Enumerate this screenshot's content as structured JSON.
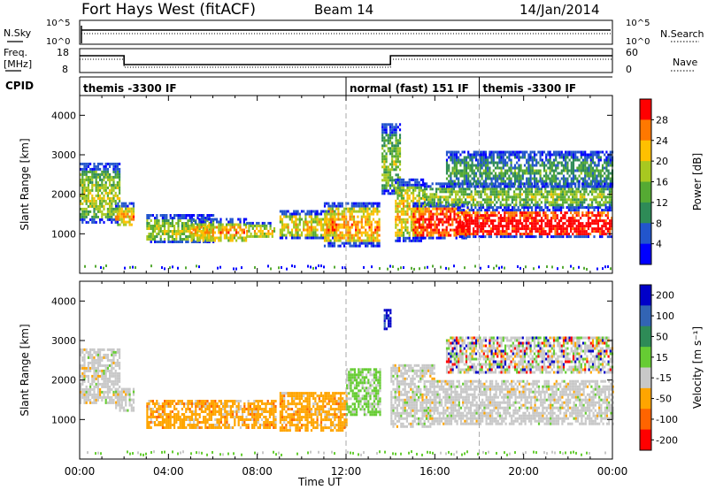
{
  "header": {
    "station": "Fort Hays West (fitACF)",
    "beam": "Beam 14",
    "date": "14/Jan/2014"
  },
  "top_panels": {
    "nsky_label": "N.Sky",
    "nsearch_label": "N.Search",
    "nsky_ticks": [
      "10^5",
      "10^0"
    ],
    "freq_label_line1": "Freq.",
    "freq_label_line2": "[MHz]",
    "freq_ticks": [
      "18",
      "8"
    ],
    "nave_label": "Nave",
    "nave_ticks": [
      "60",
      "0"
    ],
    "cpid_label": "CPID",
    "cpid_segments": [
      {
        "label": "themis -3300 IF",
        "start_hour": 0
      },
      {
        "label": "normal (fast) 151 IF",
        "start_hour": 12
      },
      {
        "label": "themis -3300 IF",
        "start_hour": 18
      }
    ],
    "freq_steps": [
      {
        "from": 0,
        "to": 2,
        "level": "high"
      },
      {
        "from": 2,
        "to": 14,
        "level": "low"
      },
      {
        "from": 14,
        "to": 24,
        "level": "high"
      }
    ]
  },
  "x_axis": {
    "title": "Time UT",
    "ticks": [
      "00:00",
      "04:00",
      "08:00",
      "12:00",
      "16:00",
      "20:00",
      "00:00"
    ],
    "hours": [
      0,
      4,
      8,
      12,
      16,
      20,
      24
    ]
  },
  "chart_data": [
    {
      "type": "heatmap",
      "name": "power",
      "ylabel": "Slant Range [km]",
      "yticks": [
        1000,
        2000,
        3000,
        4000
      ],
      "ylim": [
        0,
        4500
      ],
      "xlim_hours": [
        0,
        24
      ],
      "colorbar_title": "Power [dB]",
      "colorbar_ticks": [
        "4",
        "8",
        "12",
        "16",
        "20",
        "24",
        "28"
      ],
      "colors": [
        "#0000ff",
        "#2255cc",
        "#2e8b57",
        "#55aa33",
        "#a8c820",
        "#ffc000",
        "#ff7800",
        "#ff0000"
      ],
      "regions": [
        {
          "t0": 0.0,
          "t1": 1.8,
          "r0": 1300,
          "r1": 2800,
          "level": 0.35
        },
        {
          "t0": 1.6,
          "t1": 2.4,
          "r0": 1200,
          "r1": 1800,
          "level": 0.5
        },
        {
          "t0": 3.0,
          "t1": 6.0,
          "r0": 800,
          "r1": 1500,
          "level": 0.35
        },
        {
          "t0": 5.0,
          "t1": 7.5,
          "r0": 800,
          "r1": 1400,
          "level": 0.5
        },
        {
          "t0": 7.5,
          "t1": 8.8,
          "r0": 900,
          "r1": 1300,
          "level": 0.4
        },
        {
          "t0": 9.0,
          "t1": 11.5,
          "r0": 900,
          "r1": 1600,
          "level": 0.45
        },
        {
          "t0": 11.0,
          "t1": 13.5,
          "r0": 700,
          "r1": 1800,
          "level": 0.55
        },
        {
          "t0": 13.6,
          "t1": 14.4,
          "r0": 2000,
          "r1": 3800,
          "level": 0.3
        },
        {
          "t0": 14.2,
          "t1": 15.5,
          "r0": 800,
          "r1": 2400,
          "level": 0.45
        },
        {
          "t0": 15.0,
          "t1": 17.5,
          "r0": 900,
          "r1": 1800,
          "level": 0.75
        },
        {
          "t0": 17.0,
          "t1": 24.0,
          "r0": 900,
          "r1": 1700,
          "level": 0.8
        },
        {
          "t0": 15.5,
          "t1": 24.0,
          "r0": 1700,
          "r1": 2300,
          "level": 0.3
        },
        {
          "t0": 16.5,
          "t1": 24.0,
          "r0": 2200,
          "r1": 3100,
          "level": 0.15
        }
      ]
    },
    {
      "type": "heatmap",
      "name": "velocity",
      "ylabel": "Slant Range [km]",
      "yticks": [
        1000,
        2000,
        3000,
        4000
      ],
      "ylim": [
        0,
        4500
      ],
      "xlim_hours": [
        0,
        24
      ],
      "colorbar_title": "Velocity [m s⁻¹]",
      "colorbar_ticks": [
        "200",
        "100",
        "50",
        "15",
        "-15",
        "-50",
        "-100",
        "-200"
      ],
      "colors": [
        "#0000c8",
        "#3264b4",
        "#2e8b57",
        "#66cc33",
        "#c8c8c8",
        "#ffa500",
        "#ff6400",
        "#ff0000"
      ],
      "regions": [
        {
          "t0": 0.0,
          "t1": 1.8,
          "r0": 1400,
          "r1": 2800,
          "cls": "gray"
        },
        {
          "t0": 1.6,
          "t1": 2.4,
          "r0": 1200,
          "r1": 1800,
          "cls": "gray"
        },
        {
          "t0": 3.0,
          "t1": 8.8,
          "r0": 800,
          "r1": 1500,
          "cls": "orange"
        },
        {
          "t0": 9.0,
          "t1": 12.0,
          "r0": 700,
          "r1": 1700,
          "cls": "orange"
        },
        {
          "t0": 12.0,
          "t1": 13.5,
          "r0": 1100,
          "r1": 2300,
          "cls": "green"
        },
        {
          "t0": 13.7,
          "t1": 14.0,
          "r0": 3300,
          "r1": 3800,
          "cls": "blue"
        },
        {
          "t0": 14.0,
          "t1": 16.0,
          "r0": 800,
          "r1": 2400,
          "cls": "gray"
        },
        {
          "t0": 16.0,
          "t1": 24.0,
          "r0": 900,
          "r1": 2000,
          "cls": "gray"
        },
        {
          "t0": 16.5,
          "t1": 24.0,
          "r0": 2200,
          "r1": 3100,
          "cls": "mixed"
        }
      ]
    }
  ]
}
